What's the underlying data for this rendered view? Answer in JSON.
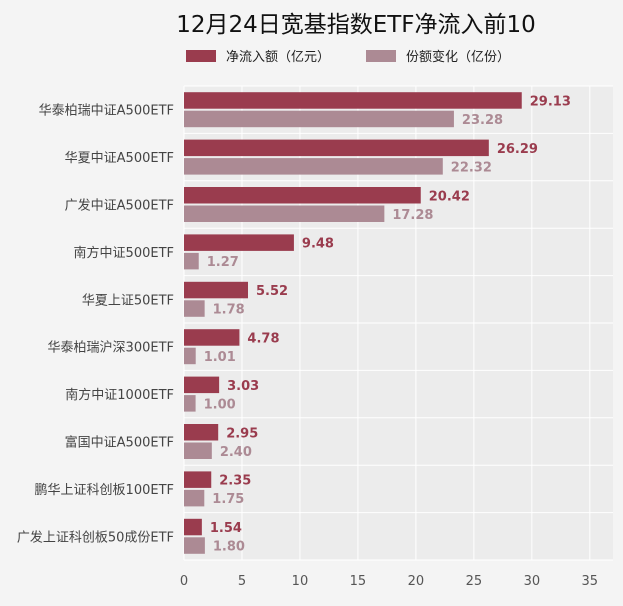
{
  "chart_data": {
    "type": "bar",
    "orientation": "horizontal",
    "title": "12月24日宽基指数ETF净流入前10",
    "categories": [
      "华泰柏瑞中证A500ETF",
      "华夏中证A500ETF",
      "广发中证A500ETF",
      "南方中证500ETF",
      "华夏上证50ETF",
      "华泰柏瑞沪深300ETF",
      "南方中证1000ETF",
      "富国中证A500ETF",
      "鹏华上证科创板100ETF",
      "广发上证科创板50成份ETF"
    ],
    "series": [
      {
        "name": "净流入额（亿元）",
        "values": [
          29.13,
          26.29,
          20.42,
          9.48,
          5.52,
          4.78,
          3.03,
          2.95,
          2.35,
          1.54
        ]
      },
      {
        "name": "份额变化（亿份）",
        "values": [
          23.28,
          22.32,
          17.28,
          1.27,
          1.78,
          1.01,
          1.0,
          2.4,
          1.75,
          1.8
        ]
      }
    ],
    "value_labels": [
      [
        "29.13",
        "26.29",
        "20.42",
        "9.48",
        "5.52",
        "4.78",
        "3.03",
        "2.95",
        "2.35",
        "1.54"
      ],
      [
        "23.28",
        "22.32",
        "17.28",
        "1.27",
        "1.78",
        "1.01",
        "1.00",
        "2.40",
        "1.75",
        "1.80"
      ]
    ],
    "xticks": [
      "0",
      "5",
      "10",
      "15",
      "20",
      "25",
      "30",
      "35"
    ],
    "xlim": [
      0,
      37
    ],
    "grid": true,
    "legend_position": "top",
    "colors": [
      "#9a3c4e",
      "#ac8a94"
    ]
  }
}
